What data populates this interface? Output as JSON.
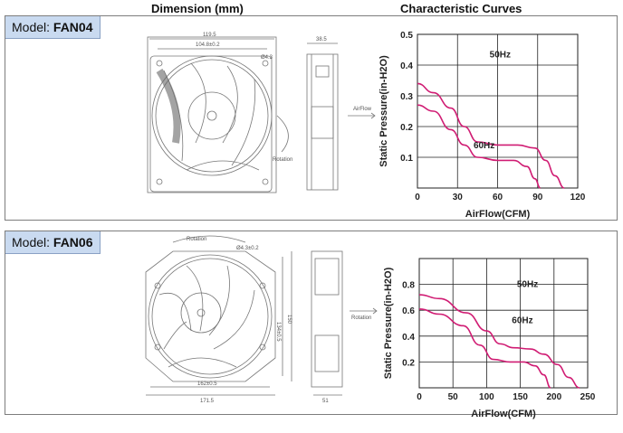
{
  "headers": {
    "dimension": "Dimension (mm)",
    "curves": "Characteristic Curves"
  },
  "fans": [
    {
      "model_prefix": "Model: ",
      "model_name": "FAN04",
      "drawing": {
        "dims": [
          "119.5",
          "104.8±0.2",
          "38.5",
          "Ø4.3"
        ],
        "labels": [
          "AirFlow",
          "Rotation"
        ]
      },
      "chart_data": {
        "type": "line",
        "xlabel": "AirFlow(CFM)",
        "ylabel": "Static Pressure(in-H2O)",
        "xlim": [
          0,
          120
        ],
        "ylim": [
          0,
          0.5
        ],
        "xticks": [
          0,
          30,
          60,
          90,
          120
        ],
        "yticks": [
          0.1,
          0.2,
          0.3,
          0.4,
          0.5
        ],
        "series": [
          {
            "name": "60Hz",
            "points": [
              [
                0,
                0.34
              ],
              [
                12,
                0.31
              ],
              [
                25,
                0.26
              ],
              [
                35,
                0.2
              ],
              [
                45,
                0.15
              ],
              [
                60,
                0.14
              ],
              [
                75,
                0.14
              ],
              [
                88,
                0.13
              ],
              [
                96,
                0.09
              ],
              [
                103,
                0.04
              ],
              [
                110,
                0.0
              ]
            ]
          },
          {
            "name": "50Hz",
            "points": [
              [
                0,
                0.27
              ],
              [
                12,
                0.25
              ],
              [
                25,
                0.19
              ],
              [
                35,
                0.14
              ],
              [
                45,
                0.1
              ],
              [
                60,
                0.09
              ],
              [
                72,
                0.09
              ],
              [
                82,
                0.07
              ],
              [
                88,
                0.03
              ],
              [
                92,
                0.0
              ]
            ]
          }
        ]
      }
    },
    {
      "model_prefix": "Model: ",
      "model_name": "FAN06",
      "drawing": {
        "dims": [
          "Ø4.3±0.2",
          "134±0.5",
          "150",
          "162±0.5",
          "171.5",
          "51"
        ],
        "labels": [
          "Rotation",
          "Rotation"
        ]
      },
      "chart_data": {
        "type": "line",
        "xlabel": "AirFlow(CFM)",
        "ylabel": "Static Pressure(in-H2O)",
        "xlim": [
          0,
          250
        ],
        "ylim": [
          0,
          1.0
        ],
        "xticks": [
          0,
          50,
          100,
          150,
          200,
          250
        ],
        "yticks": [
          0.2,
          0.4,
          0.6,
          0.8
        ],
        "series": [
          {
            "name": "60Hz",
            "points": [
              [
                0,
                0.72
              ],
              [
                30,
                0.69
              ],
              [
                70,
                0.58
              ],
              [
                100,
                0.44
              ],
              [
                120,
                0.34
              ],
              [
                140,
                0.31
              ],
              [
                165,
                0.3
              ],
              [
                185,
                0.26
              ],
              [
                205,
                0.18
              ],
              [
                222,
                0.08
              ],
              [
                238,
                0.0
              ]
            ]
          },
          {
            "name": "50Hz",
            "points": [
              [
                0,
                0.61
              ],
              [
                30,
                0.57
              ],
              [
                65,
                0.48
              ],
              [
                90,
                0.33
              ],
              [
                110,
                0.22
              ],
              [
                135,
                0.2
              ],
              [
                155,
                0.2
              ],
              [
                172,
                0.17
              ],
              [
                185,
                0.1
              ],
              [
                195,
                0.0
              ]
            ]
          }
        ]
      }
    }
  ]
}
